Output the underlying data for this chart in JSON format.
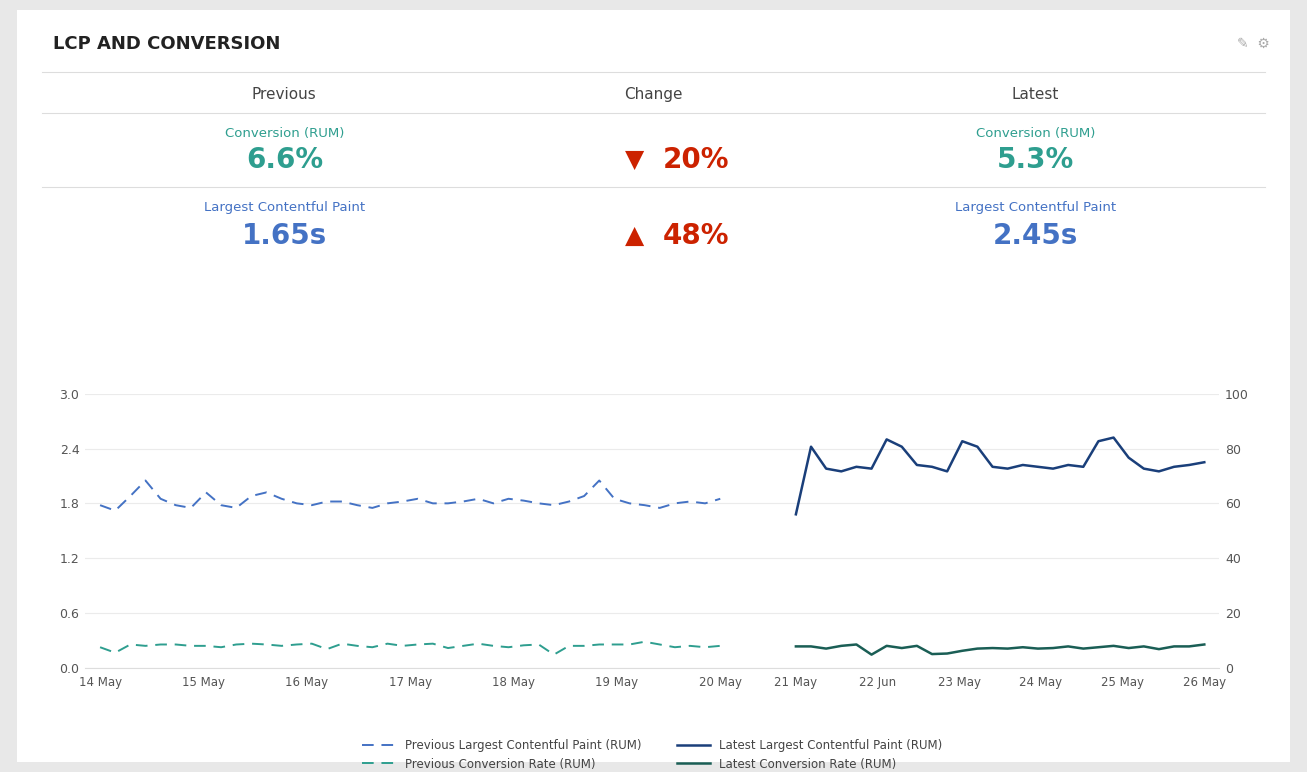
{
  "title": "LCP AND CONVERSION",
  "header": {
    "col1": "Previous",
    "col2": "Change",
    "col3": "Latest"
  },
  "row1": {
    "label": "Conversion (RUM)",
    "prev_value": "6.6%",
    "change_pct": "20%",
    "change_arrow": "▼",
    "latest_value": "5.3%",
    "label_color": "#2e9e8f",
    "value_color": "#2e9e8f",
    "change_color": "#cc2200"
  },
  "row2": {
    "label": "Largest Contentful Paint",
    "prev_value": "1.65s",
    "change_pct": "48%",
    "change_arrow": "▲",
    "latest_value": "2.45s",
    "label_color": "#4472c4",
    "value_color": "#4472c4",
    "change_color": "#cc2200"
  },
  "x_labels": [
    "14 May",
    "15 May",
    "16 May",
    "17 May",
    "18 May",
    "19 May",
    "20 May",
    "21 May",
    "22 Jun",
    "23 May",
    "24 May",
    "25 May",
    "26 May"
  ],
  "prev_lcp": [
    1.78,
    1.72,
    1.88,
    2.05,
    1.85,
    1.78,
    1.75,
    1.92,
    1.78,
    1.75,
    1.88,
    1.92,
    1.85,
    1.8,
    1.78,
    1.82,
    1.82,
    1.78,
    1.75,
    1.8,
    1.82,
    1.85,
    1.8,
    1.8,
    1.82,
    1.85,
    1.8,
    1.85,
    1.83,
    1.8,
    1.78,
    1.82,
    1.88,
    2.05,
    1.85,
    1.8,
    1.78,
    1.75,
    1.8,
    1.82,
    1.8,
    1.85
  ],
  "latest_lcp": [
    1.68,
    2.42,
    2.18,
    2.15,
    2.2,
    2.18,
    2.5,
    2.42,
    2.22,
    2.2,
    2.15,
    2.48,
    2.42,
    2.2,
    2.18,
    2.22,
    2.2,
    2.18,
    2.22,
    2.2,
    2.48,
    2.52,
    2.3,
    2.18,
    2.15,
    2.2,
    2.22,
    2.25
  ],
  "prev_conv": [
    7.5,
    5.5,
    8.5,
    8.0,
    8.5,
    8.5,
    8.0,
    8.0,
    7.5,
    8.5,
    8.8,
    8.5,
    8.0,
    8.5,
    8.8,
    6.8,
    8.8,
    8.0,
    7.5,
    8.8,
    8.0,
    8.5,
    8.8,
    7.2,
    8.0,
    8.8,
    8.0,
    7.5,
    8.2,
    8.5,
    4.8,
    8.0,
    8.0,
    8.5,
    8.5,
    8.5,
    9.5,
    8.5,
    7.5,
    8.0,
    7.5,
    8.0
  ],
  "latest_conv": [
    7.8,
    7.8,
    7.0,
    8.0,
    8.5,
    4.8,
    8.0,
    7.2,
    8.0,
    5.0,
    5.2,
    6.2,
    7.0,
    7.2,
    7.0,
    7.5,
    7.0,
    7.2,
    7.8,
    7.0,
    7.5,
    8.0,
    7.2,
    7.8,
    6.8,
    7.8,
    7.8,
    8.5
  ],
  "lcp_color_prev": "#4472c4",
  "lcp_color_latest": "#1a3f7a",
  "conv_color_prev": "#2e9e8f",
  "conv_color_latest": "#1a5e55",
  "ylim_left": [
    0,
    3
  ],
  "ylim_right": [
    0,
    100
  ],
  "yticks_left": [
    0,
    0.6,
    1.2,
    1.8,
    2.4,
    3.0
  ],
  "yticks_right": [
    0,
    20,
    40,
    60,
    80,
    100
  ],
  "prev_n": 42,
  "latest_n": 28
}
